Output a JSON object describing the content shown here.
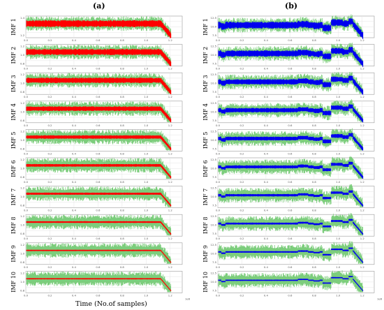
{
  "panels": [
    {
      "label": "(a)",
      "signal_color": "#ff0000"
    },
    {
      "label": "(b)",
      "signal_color": "#0000ee"
    }
  ],
  "xlabel": "Time (No.of samples)",
  "x_multiplier_label": "1e6",
  "raw_signal_color": "#7ccd7c",
  "chart_data": [
    {
      "type": "line",
      "panel": "(a)",
      "xlabel": "Time (No.of samples)",
      "x_ticks": [
        "0.0",
        "0.2",
        "0.4",
        "0.6",
        "0.8",
        "1.0",
        "1.2"
      ],
      "xlim": [
        0,
        1.3
      ],
      "series": [
        {
          "name": "IMF 1",
          "y_ticks": [
            "1.4",
            "1.2"
          ],
          "noise_amplitude": 0.8
        },
        {
          "name": "IMF 2",
          "y_ticks": [
            "1.2",
            "1.0",
            "0.8"
          ],
          "noise_amplitude": 0.7
        },
        {
          "name": "IMF 3",
          "y_ticks": [
            "1.2",
            "1.0",
            "0.8"
          ],
          "noise_amplitude": 0.6
        },
        {
          "name": "IMF 4",
          "y_ticks": [
            "1.2",
            "1.0",
            "0.8"
          ],
          "noise_amplitude": 0.5
        },
        {
          "name": "IMF 5",
          "y_ticks": [
            "1.2",
            "1.0",
            "0.8"
          ],
          "noise_amplitude": 0.35
        },
        {
          "name": "IMF 6",
          "y_ticks": [
            "1.2",
            "1.0",
            "0.8"
          ],
          "noise_amplitude": 0.25
        },
        {
          "name": "IMF 7",
          "y_ticks": [
            "1.2",
            "1.0",
            "0.8"
          ],
          "noise_amplitude": 0.18
        },
        {
          "name": "IMF 8",
          "y_ticks": [
            "1.2",
            "1.0",
            "0.8"
          ],
          "noise_amplitude": 0.12
        },
        {
          "name": "IMF 9",
          "y_ticks": [
            "1.2",
            "1.0",
            "0.8"
          ],
          "noise_amplitude": 0.07
        },
        {
          "name": "IMF 10",
          "y_ticks": [
            "1.2",
            "1.0",
            "0.8"
          ],
          "noise_amplitude": 0.05
        }
      ]
    },
    {
      "type": "line",
      "panel": "(b)",
      "x_ticks": [
        "0.0",
        "0.2",
        "0.4",
        "0.6",
        "0.8",
        "1.0",
        "1.2"
      ],
      "xlim": [
        0,
        1.3
      ],
      "series": [
        {
          "name": "IMF 1",
          "y_ticks": [
            "12.5",
            "10.0",
            "7.5"
          ],
          "noise_amplitude": 0.8
        },
        {
          "name": "IMF 2",
          "y_ticks": [
            "12.5",
            "10.0",
            "7.5"
          ],
          "noise_amplitude": 0.7
        },
        {
          "name": "IMF 3",
          "y_ticks": [
            "12.5",
            "10.0",
            "7.5"
          ],
          "noise_amplitude": 0.6
        },
        {
          "name": "IMF 4",
          "y_ticks": [
            "12.5",
            "10.0",
            "7.5"
          ],
          "noise_amplitude": 0.5
        },
        {
          "name": "IMF 5",
          "y_ticks": [
            "12.5",
            "10.0",
            "7.5"
          ],
          "noise_amplitude": 0.4
        },
        {
          "name": "IMF 6",
          "y_ticks": [
            "12.5",
            "10.0",
            "7.5"
          ],
          "noise_amplitude": 0.3
        },
        {
          "name": "IMF 7",
          "y_ticks": [
            "12.5",
            "10.0",
            "7.5"
          ],
          "noise_amplitude": 0.22
        },
        {
          "name": "IMF 8",
          "y_ticks": [
            "12.5",
            "10.0",
            "7.5"
          ],
          "noise_amplitude": 0.15
        },
        {
          "name": "IMF 9",
          "y_ticks": [
            "12.5",
            "10.0",
            "7.5"
          ],
          "noise_amplitude": 0.1
        },
        {
          "name": "IMF 10",
          "y_ticks": [
            "12.5",
            "10.0",
            "7.5"
          ],
          "noise_amplitude": 0.06
        }
      ]
    }
  ]
}
